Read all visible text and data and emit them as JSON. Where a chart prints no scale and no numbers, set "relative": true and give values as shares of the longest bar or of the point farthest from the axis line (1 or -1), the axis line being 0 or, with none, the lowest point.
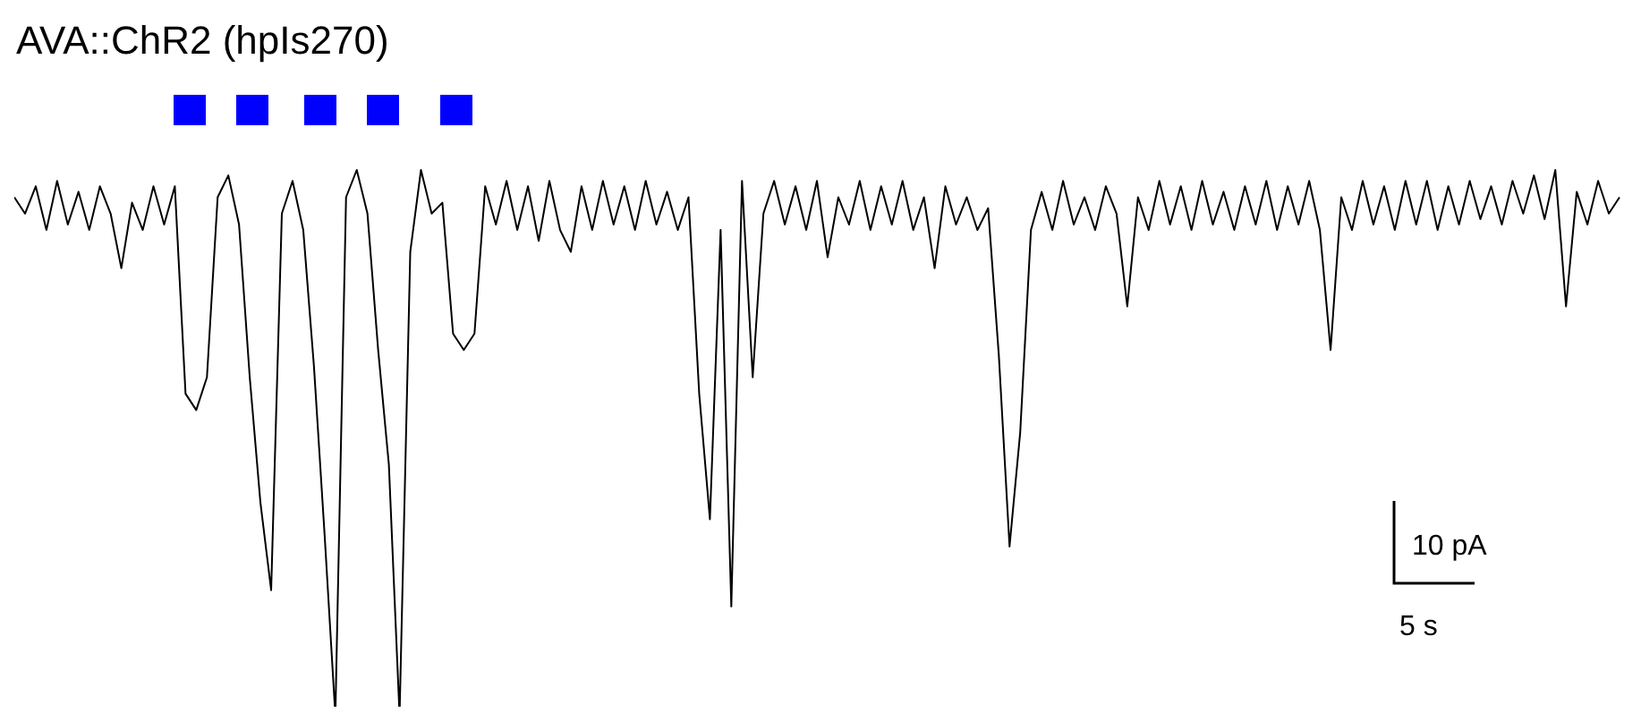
{
  "chart_data": {
    "type": "line",
    "title": "AVA::ChR2 (hpIs270)",
    "relative": true,
    "categories": [
      null,
      null,
      null,
      null,
      null,
      null,
      null,
      null,
      null,
      null,
      null,
      null,
      null,
      null,
      null,
      null,
      null,
      null,
      null,
      null,
      null,
      null,
      null,
      null,
      null,
      null,
      null,
      null,
      null,
      null,
      null,
      null,
      null,
      null,
      null,
      null,
      null,
      null,
      null,
      null,
      null,
      null,
      null,
      null,
      null,
      null,
      null,
      null,
      null,
      null,
      null,
      null,
      null,
      null,
      null,
      null,
      null,
      null,
      null,
      null,
      null,
      null,
      null,
      null,
      null,
      null,
      null,
      null,
      null,
      null,
      null,
      null,
      null,
      null,
      null,
      null,
      null,
      null,
      null,
      null,
      null,
      null,
      null,
      null,
      null,
      null,
      null,
      null,
      null,
      null,
      null,
      null,
      null,
      null,
      null,
      null,
      null,
      null,
      null,
      null,
      null,
      null,
      null,
      null,
      null,
      null,
      null,
      null,
      null,
      null,
      null,
      null,
      null,
      null,
      null,
      null,
      null,
      null,
      null,
      null,
      null,
      null,
      null,
      null,
      null,
      null,
      null,
      null,
      null,
      null,
      null,
      null,
      null,
      null,
      null,
      null,
      null,
      null,
      null,
      null,
      null,
      null,
      null,
      null,
      null,
      null,
      null,
      null,
      null,
      null,
      null
    ],
    "series": [
      {
        "color": "#000000",
        "values": [
          0.95,
          0.92,
          0.97,
          0.89,
          0.98,
          0.9,
          0.96,
          0.89,
          0.97,
          0.92,
          0.82,
          0.94,
          0.89,
          0.97,
          0.9,
          0.97,
          0.59,
          0.56,
          0.62,
          0.95,
          0.99,
          0.9,
          0.62,
          0.39,
          0.23,
          0.92,
          0.98,
          0.89,
          0.64,
          0.33,
          0,
          0.95,
          1,
          0.92,
          0.67,
          0.46,
          0,
          0.85,
          1,
          0.92,
          0.94,
          0.7,
          0.67,
          0.7,
          0.97,
          0.9,
          0.98,
          0.89,
          0.97,
          0.87,
          0.98,
          0.89,
          0.85,
          0.97,
          0.89,
          0.98,
          0.9,
          0.97,
          0.89,
          0.98,
          0.9,
          0.96,
          0.89,
          0.95,
          0.59,
          0.36,
          0.89,
          0.2,
          0.98,
          0.62,
          0.92,
          0.98,
          0.9,
          0.97,
          0.89,
          0.98,
          0.84,
          0.95,
          0.9,
          0.98,
          0.89,
          0.97,
          0.9,
          0.98,
          0.89,
          0.95,
          0.82,
          0.97,
          0.9,
          0.95,
          0.89,
          0.93,
          0.66,
          0.31,
          0.52,
          0.89,
          0.96,
          0.89,
          0.98,
          0.9,
          0.95,
          0.89,
          0.97,
          0.92,
          0.75,
          0.95,
          0.89,
          0.98,
          0.9,
          0.97,
          0.89,
          0.98,
          0.9,
          0.96,
          0.89,
          0.97,
          0.9,
          0.98,
          0.89,
          0.97,
          0.9,
          0.98,
          0.89,
          0.67,
          0.95,
          0.89,
          0.98,
          0.9,
          0.97,
          0.89,
          0.98,
          0.9,
          0.98,
          0.89,
          0.97,
          0.9,
          0.98,
          0.91,
          0.97,
          0.9,
          0.98,
          0.92,
          0.99,
          0.91,
          1,
          0.75,
          0.96,
          0.9,
          0.98,
          0.92,
          0.95
        ]
      }
    ],
    "annotations": [
      "10 pA",
      "5 s"
    ]
  }
}
